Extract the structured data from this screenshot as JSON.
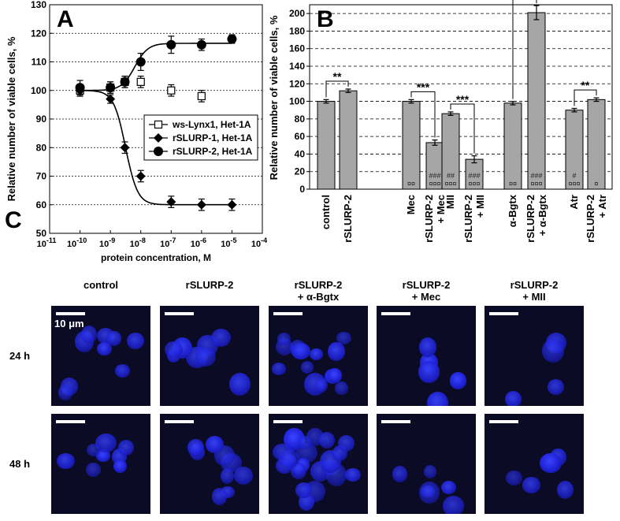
{
  "chart_data": [
    {
      "panel": "A",
      "type": "scatter",
      "xlabel": "protein concentration, M",
      "ylabel": "Relative number of viable cells, %",
      "xscale": "log",
      "xlim": [
        1e-11,
        0.0001
      ],
      "ylim": [
        50,
        130
      ],
      "x_ticks": [
        "10^-11",
        "10^-10",
        "10^-9",
        "10^-8",
        "10^-7",
        "10^-6",
        "10^-5",
        "10^-4"
      ],
      "y_ticks": [
        50,
        60,
        70,
        80,
        90,
        100,
        110,
        120,
        130
      ],
      "grid": "horizontal dotted",
      "legend_position": "center-right",
      "series": [
        {
          "name": "ws-Lynx1, Het-1A",
          "marker": "open-square",
          "x": [
            1e-10,
            1e-09,
            3e-09,
            1e-08,
            1e-07,
            1e-06
          ],
          "y": [
            100,
            101,
            103,
            103,
            100,
            98
          ],
          "err": [
            2,
            2,
            2,
            2,
            2,
            2
          ]
        },
        {
          "name": "rSLURP-1, Het-1A",
          "marker": "filled-diamond",
          "x": [
            1e-10,
            1e-09,
            3e-09,
            1e-08,
            1e-07,
            1e-06,
            1e-05
          ],
          "y": [
            100,
            97,
            80,
            70,
            61,
            60,
            60
          ],
          "err": [
            2,
            1.5,
            2,
            2,
            2,
            2,
            2
          ]
        },
        {
          "name": "rSLURP-2, Het-1A",
          "marker": "filled-circle",
          "x": [
            1e-10,
            1e-09,
            3e-09,
            1e-08,
            1e-07,
            1e-06,
            1e-05
          ],
          "y": [
            101,
            101,
            103,
            110,
            116,
            116,
            118
          ],
          "err": [
            2.5,
            2,
            2,
            3,
            3,
            2,
            1.5
          ]
        }
      ]
    },
    {
      "panel": "B",
      "type": "bar",
      "ylabel": "Relative number of viable cells, %",
      "ylim": [
        0,
        210
      ],
      "y_ticks": [
        0,
        20,
        40,
        60,
        80,
        100,
        120,
        140,
        160,
        180,
        200
      ],
      "grid": "horizontal dashed",
      "categories": [
        "control",
        "rSLURP-2",
        "Mec",
        "rSLURP-2 + Mec",
        "MII",
        "rSLURP-2 + MII",
        "α-Bgtx",
        "rSLURP-2 + α-Bgtx",
        "Atr",
        "rSLURP-2 + Atr"
      ],
      "values": [
        100,
        112,
        100,
        53,
        86,
        34,
        98,
        201,
        90,
        102
      ],
      "errors": [
        2,
        2,
        2,
        3,
        2,
        4,
        2,
        8,
        2,
        2
      ],
      "bar_marks": [
        "",
        "",
        "¤¤",
        "###\n¤¤¤",
        "##\n¤¤¤",
        "###\n¤¤¤",
        "¤¤",
        "###\n¤¤¤",
        "#\n¤¤¤",
        "¤"
      ],
      "comparisons": [
        {
          "bars": [
            0,
            1
          ],
          "label": "**"
        },
        {
          "bars": [
            2,
            3
          ],
          "label": "***"
        },
        {
          "bars": [
            4,
            5
          ],
          "label": "***"
        },
        {
          "bars": [
            6,
            7
          ],
          "label": "***"
        },
        {
          "bars": [
            8,
            9
          ],
          "label": "**"
        }
      ]
    }
  ],
  "panels": {
    "a": "A",
    "b": "B",
    "c": "C"
  },
  "colors": {
    "bar": "#a6a6a6",
    "nuclei": "#2a32ff",
    "micro_bg": "#0b0b26"
  },
  "micrographs": {
    "columns": [
      "control",
      "rSLURP-2",
      "rSLURP-2\n+ α-Bgtx",
      "rSLURP-2\n+ Mec",
      "rSLURP-2\n+ MII"
    ],
    "rows": [
      "24 h",
      "48 h"
    ],
    "scalebar_label": "10 μm"
  }
}
